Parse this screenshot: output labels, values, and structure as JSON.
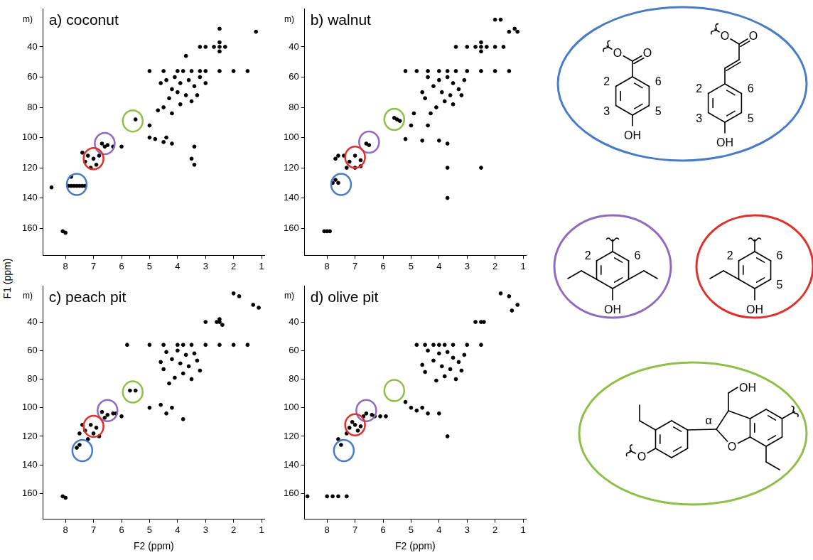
{
  "chart_data": [
    {
      "type": "scatter",
      "title": "a) coconut",
      "color": "#000000",
      "marker": "circle",
      "grid": false,
      "xlim": [
        8.8,
        0.9
      ],
      "xticks": [
        8,
        7,
        6,
        5,
        4,
        3,
        2,
        1
      ],
      "ylim": [
        178,
        15
      ],
      "yticks": [
        40,
        60,
        80,
        100,
        120,
        140,
        160
      ],
      "x": [
        2.5,
        1.2,
        2.5,
        2.3,
        2.7,
        3.0,
        3.2,
        2.5,
        2.5,
        3.7,
        5.0,
        4.5,
        4.0,
        3.8,
        3.5,
        3.2,
        3.0,
        2.5,
        2.0,
        1.5,
        4.4,
        4.1,
        3.9,
        3.6,
        3.4,
        4.0,
        3.7,
        3.3,
        4.3,
        3.5,
        3.9,
        4.5,
        3.2,
        4.6,
        4.2,
        3.0,
        4.7,
        4.2,
        5.0,
        5.0,
        4.8,
        4.5,
        4.2,
        4.4,
        3.4,
        3.5,
        3.4,
        5.5,
        6.7,
        6.6,
        6.5,
        6.3,
        6.0,
        7.2,
        7.0,
        6.9,
        7.3,
        7.1,
        6.8,
        7.4,
        7.9,
        7.8,
        7.7,
        7.6,
        7.5,
        7.4,
        7.3,
        8.5,
        7.8,
        8.1,
        8.0
      ],
      "values": [
        28,
        30,
        40,
        40,
        40,
        40,
        40,
        37,
        43,
        46,
        56,
        56,
        56,
        56,
        56,
        56,
        56,
        56,
        56,
        56,
        62,
        60,
        64,
        62,
        66,
        70,
        72,
        72,
        74,
        76,
        78,
        80,
        60,
        64,
        68,
        64,
        82,
        84,
        92,
        100,
        101,
        103,
        104,
        100,
        106,
        114,
        118,
        88,
        104,
        106,
        105,
        106,
        106,
        112,
        114,
        118,
        116,
        120,
        112,
        110,
        132,
        132,
        132,
        132,
        132,
        132,
        132,
        133,
        126,
        162,
        163
      ],
      "annotations": [
        {
          "text": "m)",
          "x": 9.35,
          "y": 22
        },
        {
          "x": 7.6,
          "y": 131,
          "color": "#4a7cc4"
        },
        {
          "x": 6.6,
          "y": 104,
          "color": "#8e6bbf"
        },
        {
          "x": 7.0,
          "y": 114,
          "color": "#e0302a"
        },
        {
          "x": 5.6,
          "y": 89,
          "color": "#8fbf4a"
        }
      ]
    },
    {
      "type": "scatter",
      "title": "b) walnut",
      "color": "#000000",
      "marker": "circle",
      "grid": false,
      "xlim": [
        8.8,
        0.9
      ],
      "xticks": [
        8,
        7,
        6,
        5,
        4,
        3,
        2,
        1
      ],
      "ylim": [
        178,
        15
      ],
      "yticks": [
        40,
        60,
        80,
        100,
        120,
        140,
        160
      ],
      "x": [
        2.0,
        1.8,
        1.3,
        1.5,
        1.2,
        3.4,
        3.0,
        2.7,
        2.5,
        2.3,
        2.0,
        1.7,
        2.5,
        2.5,
        5.2,
        4.8,
        4.4,
        4.0,
        3.7,
        3.4,
        3.0,
        2.5,
        2.0,
        1.5,
        4.4,
        4.0,
        3.7,
        3.5,
        3.3,
        4.2,
        3.9,
        3.6,
        3.2,
        4.5,
        3.8,
        4.1,
        3.5,
        4.6,
        3.1,
        4.9,
        4.3,
        5.0,
        4.4,
        5.2,
        4.6,
        4.0,
        5.6,
        5.5,
        5.4,
        6.6,
        6.5,
        7.0,
        6.8,
        7.2,
        7.4,
        7.6,
        7.0,
        6.8,
        7.3,
        7.7,
        7.7,
        7.6,
        7.8,
        8.0,
        7.9,
        8.1,
        3.7,
        3.7,
        3.7,
        2.5
      ],
      "values": [
        22,
        22,
        28,
        30,
        30,
        40,
        40,
        40,
        40,
        40,
        40,
        40,
        37,
        43,
        56,
        56,
        56,
        56,
        56,
        56,
        56,
        56,
        56,
        56,
        60,
        62,
        60,
        64,
        68,
        66,
        70,
        72,
        72,
        74,
        76,
        80,
        78,
        70,
        62,
        84,
        84,
        92,
        92,
        101,
        102,
        102,
        87,
        88,
        89,
        104,
        105,
        112,
        115,
        116,
        112,
        112,
        120,
        119,
        120,
        114,
        128,
        130,
        130,
        162,
        162,
        162,
        104,
        120,
        140,
        120
      ],
      "annotations": [
        {
          "text": "m)",
          "x": 9.35,
          "y": 22
        },
        {
          "x": 7.5,
          "y": 131,
          "color": "#4a7cc4"
        },
        {
          "x": 6.5,
          "y": 103,
          "color": "#8e6bbf"
        },
        {
          "x": 7.0,
          "y": 113,
          "color": "#e0302a"
        },
        {
          "x": 5.6,
          "y": 88,
          "color": "#8fbf4a"
        }
      ]
    },
    {
      "type": "scatter",
      "title": "c) peach pit",
      "x_label": "F2 (ppm)",
      "color": "#000000",
      "marker": "circle",
      "grid": false,
      "xlim": [
        8.8,
        0.9
      ],
      "xticks": [
        8,
        7,
        6,
        5,
        4,
        3,
        2,
        1
      ],
      "ylim": [
        178,
        15
      ],
      "yticks": [
        40,
        60,
        80,
        100,
        120,
        140,
        160
      ],
      "x": [
        2.0,
        1.8,
        1.3,
        1.1,
        2.5,
        2.6,
        2.4,
        2.5,
        3.0,
        5.8,
        5.0,
        4.5,
        4.0,
        3.8,
        3.5,
        3.0,
        2.5,
        2.0,
        1.5,
        4.4,
        4.0,
        3.7,
        3.4,
        3.3,
        4.2,
        3.9,
        3.6,
        3.2,
        4.5,
        3.8,
        4.1,
        3.5,
        4.6,
        4.3,
        5.0,
        4.6,
        4.2,
        4.4,
        3.8,
        5.7,
        5.5,
        6.7,
        6.5,
        6.6,
        6.3,
        6.2,
        6.0,
        7.1,
        6.9,
        7.3,
        7.0,
        6.8,
        7.4,
        7.5,
        7.2,
        7.5,
        7.6,
        8.1,
        8.0
      ],
      "values": [
        20,
        22,
        28,
        30,
        40,
        40,
        42,
        38,
        40,
        56,
        56,
        56,
        56,
        56,
        56,
        56,
        56,
        56,
        56,
        61,
        60,
        63,
        62,
        67,
        66,
        69,
        71,
        74,
        73,
        76,
        79,
        80,
        68,
        83,
        100,
        98,
        100,
        104,
        108,
        88,
        88,
        103,
        105,
        107,
        104,
        104,
        106,
        112,
        114,
        116,
        118,
        120,
        112,
        118,
        122,
        126,
        128,
        162,
        163
      ],
      "annotations": [
        {
          "text": "m)",
          "x": 9.35,
          "y": 22
        },
        {
          "x": 7.4,
          "y": 130,
          "color": "#4a7cc4"
        },
        {
          "x": 6.5,
          "y": 102,
          "color": "#8e6bbf"
        },
        {
          "x": 7.0,
          "y": 113,
          "color": "#e0302a"
        },
        {
          "x": 5.6,
          "y": 89,
          "color": "#8fbf4a"
        }
      ]
    },
    {
      "type": "scatter",
      "title": "d) olive pit",
      "x_label": "F2 (ppm)",
      "color": "#000000",
      "marker": "circle",
      "grid": false,
      "xlim": [
        8.8,
        0.9
      ],
      "xticks": [
        8,
        7,
        6,
        5,
        4,
        3,
        2,
        1
      ],
      "ylim": [
        178,
        15
      ],
      "yticks": [
        40,
        60,
        80,
        100,
        120,
        140,
        160
      ],
      "x": [
        1.8,
        1.5,
        1.2,
        1.4,
        2.5,
        2.4,
        2.7,
        4.8,
        4.5,
        4.2,
        4.0,
        3.8,
        3.5,
        3.0,
        2.5,
        4.4,
        4.0,
        3.7,
        3.5,
        3.3,
        4.2,
        3.9,
        3.6,
        3.2,
        4.5,
        3.8,
        4.1,
        3.4,
        4.6,
        3.1,
        5.2,
        5.0,
        4.8,
        4.6,
        4.4,
        4.0,
        6.6,
        6.4,
        6.7,
        7.0,
        7.2,
        6.9,
        7.3,
        7.1,
        6.8,
        7.6,
        7.5,
        8.7,
        8.0,
        7.8,
        7.6,
        7.3,
        6.3,
        6.1,
        5.9,
        3.7
      ],
      "values": [
        20,
        22,
        28,
        32,
        40,
        40,
        40,
        56,
        56,
        56,
        56,
        56,
        56,
        56,
        56,
        60,
        62,
        61,
        65,
        68,
        67,
        71,
        73,
        74,
        75,
        78,
        81,
        80,
        70,
        63,
        96,
        100,
        102,
        100,
        104,
        104,
        104,
        105,
        106,
        112,
        114,
        116,
        118,
        110,
        113,
        122,
        126,
        162,
        162,
        162,
        162,
        162,
        106,
        106,
        106,
        120
      ],
      "annotations": [
        {
          "text": "m)",
          "x": 9.35,
          "y": 22
        },
        {
          "x": 7.4,
          "y": 130,
          "color": "#4a7cc4"
        },
        {
          "x": 6.6,
          "y": 102,
          "color": "#8e6bbf"
        },
        {
          "x": 7.0,
          "y": 112,
          "color": "#e0302a"
        },
        {
          "x": 5.6,
          "y": 88,
          "color": "#8fbf4a"
        }
      ]
    }
  ],
  "y_label": "F1 (ppm)",
  "structures": [
    {
      "color": "#4a7cc4",
      "molecules": [
        [
          "2",
          "6",
          "3",
          "5",
          "O",
          "O",
          "OH"
        ],
        [
          "2",
          "6",
          "3",
          "5",
          "O",
          "O",
          "OH"
        ]
      ]
    },
    {
      "color": "#8e6bbf",
      "molecules": [
        [
          "2",
          "6",
          "OH"
        ]
      ]
    },
    {
      "color": "#e0302a",
      "molecules": [
        [
          "2",
          "6",
          "5",
          "OH"
        ]
      ]
    },
    {
      "color": "#8fbf4a",
      "molecules": [
        [
          "O",
          "α",
          "O",
          "OH"
        ]
      ]
    }
  ]
}
